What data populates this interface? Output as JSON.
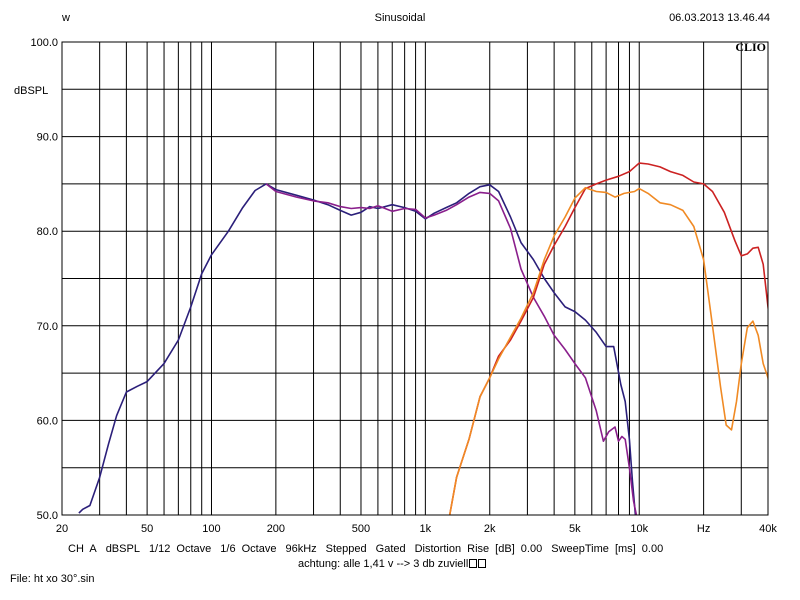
{
  "header": {
    "left": "w",
    "center": "Sinusoidal",
    "right": "06.03.2013 13.46.44"
  },
  "logo": "CLIO",
  "footer": {
    "settings": [
      "CH A",
      "dBSPL",
      "1/12 Octave",
      "1/6 Octave",
      "96kHz",
      "Stepped",
      "Gated",
      "Distortion Rise [dB] 0.00",
      "SweepTime [ms] 0.00"
    ],
    "note": "achtung: alle 1,41 v --> 3 db zuviell",
    "file": "File: ht xo 30°.sin"
  },
  "chart_data": {
    "type": "line",
    "x_scale": "log",
    "xlim": [
      20,
      40000
    ],
    "ylim": [
      50,
      100
    ],
    "ylabel": "dBSPL",
    "grid": true,
    "y_ticks": [
      "50.0",
      "60.0",
      "70.0",
      "80.0",
      "90.0",
      "100.0"
    ],
    "x_ticks": [
      {
        "v": 20,
        "label": "20"
      },
      {
        "v": 50,
        "label": "50"
      },
      {
        "v": 100,
        "label": "100"
      },
      {
        "v": 200,
        "label": "200"
      },
      {
        "v": 500,
        "label": "500"
      },
      {
        "v": 1000,
        "label": "1k"
      },
      {
        "v": 2000,
        "label": "2k"
      },
      {
        "v": 5000,
        "label": "5k"
      },
      {
        "v": 10000,
        "label": "10k"
      },
      {
        "v": 20000,
        "label": "Hz"
      },
      {
        "v": 40000,
        "label": "40k"
      }
    ],
    "series": [
      {
        "color": "#2b1f7a",
        "points": [
          [
            24,
            50.2
          ],
          [
            25,
            50.6
          ],
          [
            27,
            51.0
          ],
          [
            30,
            54.0
          ],
          [
            33,
            57.5
          ],
          [
            36,
            60.5
          ],
          [
            40,
            63.0
          ],
          [
            45,
            63.6
          ],
          [
            50,
            64.1
          ],
          [
            60,
            66.0
          ],
          [
            70,
            68.5
          ],
          [
            80,
            72.0
          ],
          [
            90,
            75.5
          ],
          [
            100,
            77.5
          ],
          [
            120,
            80.0
          ],
          [
            140,
            82.5
          ],
          [
            160,
            84.3
          ],
          [
            180,
            85.0
          ],
          [
            200,
            84.4
          ],
          [
            250,
            83.8
          ],
          [
            300,
            83.3
          ],
          [
            350,
            82.8
          ],
          [
            400,
            82.2
          ],
          [
            450,
            81.7
          ],
          [
            500,
            82.0
          ],
          [
            550,
            82.6
          ],
          [
            600,
            82.4
          ],
          [
            700,
            82.8
          ],
          [
            800,
            82.5
          ],
          [
            900,
            82.1
          ],
          [
            1000,
            81.3
          ],
          [
            1100,
            81.9
          ],
          [
            1250,
            82.5
          ],
          [
            1400,
            83.0
          ],
          [
            1600,
            84.0
          ],
          [
            1800,
            84.7
          ],
          [
            2000,
            84.9
          ],
          [
            2200,
            84.2
          ],
          [
            2500,
            81.5
          ],
          [
            2800,
            78.8
          ],
          [
            3200,
            77.0
          ],
          [
            3600,
            75.0
          ],
          [
            4000,
            73.5
          ],
          [
            4500,
            72.0
          ],
          [
            5000,
            71.5
          ],
          [
            5600,
            70.6
          ],
          [
            6300,
            69.3
          ],
          [
            7000,
            67.8
          ],
          [
            7600,
            67.8
          ],
          [
            8200,
            63.8
          ],
          [
            8600,
            62.0
          ],
          [
            9000,
            58.0
          ],
          [
            9300,
            53.5
          ],
          [
            9600,
            50.0
          ]
        ]
      },
      {
        "color": "#8a1f8c",
        "points": [
          [
            180,
            85.0
          ],
          [
            200,
            84.2
          ],
          [
            250,
            83.6
          ],
          [
            300,
            83.2
          ],
          [
            350,
            83.0
          ],
          [
            400,
            82.6
          ],
          [
            450,
            82.4
          ],
          [
            500,
            82.5
          ],
          [
            550,
            82.4
          ],
          [
            600,
            82.7
          ],
          [
            700,
            82.1
          ],
          [
            800,
            82.4
          ],
          [
            900,
            82.3
          ],
          [
            1000,
            81.4
          ],
          [
            1100,
            81.7
          ],
          [
            1250,
            82.2
          ],
          [
            1400,
            82.8
          ],
          [
            1600,
            83.6
          ],
          [
            1800,
            84.1
          ],
          [
            2000,
            84.0
          ],
          [
            2200,
            83.2
          ],
          [
            2500,
            80.3
          ],
          [
            2800,
            76.0
          ],
          [
            3200,
            73.0
          ],
          [
            3600,
            71.0
          ],
          [
            4000,
            69.0
          ],
          [
            4500,
            67.5
          ],
          [
            5000,
            66.0
          ],
          [
            5600,
            64.5
          ],
          [
            6300,
            61.0
          ],
          [
            6800,
            57.8
          ],
          [
            7200,
            58.8
          ],
          [
            7700,
            59.3
          ],
          [
            8000,
            57.8
          ],
          [
            8300,
            58.3
          ],
          [
            8600,
            58.0
          ],
          [
            9000,
            55.0
          ],
          [
            9400,
            51.5
          ],
          [
            9700,
            50.0
          ]
        ]
      },
      {
        "color": "#cc2222",
        "points": [
          [
            1300,
            50.0
          ],
          [
            1400,
            54.0
          ],
          [
            1600,
            58.0
          ],
          [
            1800,
            62.5
          ],
          [
            2000,
            64.5
          ],
          [
            2200,
            66.8
          ],
          [
            2500,
            68.5
          ],
          [
            2800,
            70.5
          ],
          [
            3200,
            73.0
          ],
          [
            3600,
            76.5
          ],
          [
            4000,
            78.5
          ],
          [
            4500,
            80.5
          ],
          [
            5000,
            82.5
          ],
          [
            5600,
            84.5
          ],
          [
            6300,
            85.0
          ],
          [
            7000,
            85.4
          ],
          [
            8000,
            85.8
          ],
          [
            9000,
            86.3
          ],
          [
            10000,
            87.2
          ],
          [
            11000,
            87.1
          ],
          [
            12500,
            86.8
          ],
          [
            14000,
            86.3
          ],
          [
            16000,
            85.9
          ],
          [
            18000,
            85.2
          ],
          [
            20000,
            85.0
          ],
          [
            22000,
            84.2
          ],
          [
            25000,
            82.0
          ],
          [
            28000,
            79.0
          ],
          [
            30000,
            77.4
          ],
          [
            32000,
            77.6
          ],
          [
            34000,
            78.2
          ],
          [
            36000,
            78.3
          ],
          [
            38000,
            76.5
          ],
          [
            40000,
            72.0
          ],
          [
            42000,
            68.5
          ]
        ]
      },
      {
        "color": "#f08a24",
        "points": [
          [
            1300,
            50.0
          ],
          [
            1400,
            54.0
          ],
          [
            1600,
            58.0
          ],
          [
            1800,
            62.5
          ],
          [
            2000,
            64.5
          ],
          [
            2200,
            66.5
          ],
          [
            2500,
            68.8
          ],
          [
            2800,
            70.8
          ],
          [
            3200,
            73.5
          ],
          [
            3600,
            77.0
          ],
          [
            4000,
            79.5
          ],
          [
            4500,
            81.5
          ],
          [
            5000,
            83.5
          ],
          [
            5600,
            84.6
          ],
          [
            6300,
            84.2
          ],
          [
            7000,
            84.1
          ],
          [
            7700,
            83.6
          ],
          [
            8500,
            84.0
          ],
          [
            9500,
            84.2
          ],
          [
            10000,
            84.5
          ],
          [
            11000,
            84.0
          ],
          [
            12500,
            83.0
          ],
          [
            14000,
            82.8
          ],
          [
            16000,
            82.2
          ],
          [
            18000,
            80.5
          ],
          [
            20000,
            77.0
          ],
          [
            22000,
            70.0
          ],
          [
            24000,
            63.5
          ],
          [
            25500,
            59.5
          ],
          [
            27000,
            59.0
          ],
          [
            28500,
            62.0
          ],
          [
            30000,
            66.0
          ],
          [
            32000,
            69.8
          ],
          [
            34000,
            70.5
          ],
          [
            36000,
            69.0
          ],
          [
            38000,
            66.0
          ],
          [
            40000,
            64.5
          ],
          [
            42000,
            61.0
          ]
        ]
      }
    ]
  }
}
